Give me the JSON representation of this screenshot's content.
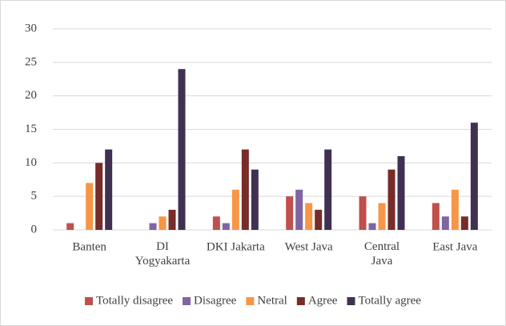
{
  "chart_data": {
    "type": "bar",
    "categories": [
      "Banten",
      "DI\nYogyakarta",
      "DKI Jakarta",
      "West Java",
      "Central\nJava",
      "East Java"
    ],
    "series": [
      {
        "name": "Totally disagree",
        "color": "#c0504d",
        "values": [
          1,
          0,
          2,
          5,
          5,
          4
        ]
      },
      {
        "name": "Disagree",
        "color": "#8064a2",
        "values": [
          0,
          1,
          1,
          6,
          1,
          2
        ]
      },
      {
        "name": "Netral",
        "color": "#f79646",
        "values": [
          7,
          2,
          6,
          4,
          4,
          6
        ]
      },
      {
        "name": "Agree",
        "color": "#772c2a",
        "values": [
          10,
          3,
          12,
          3,
          9,
          2
        ]
      },
      {
        "name": "Totally agree",
        "color": "#403152",
        "values": [
          12,
          24,
          9,
          12,
          11,
          16
        ]
      }
    ],
    "ylim": [
      0,
      30
    ],
    "yticks": [
      0,
      5,
      10,
      15,
      20,
      25,
      30
    ],
    "grid": true,
    "legend": "bottom"
  }
}
